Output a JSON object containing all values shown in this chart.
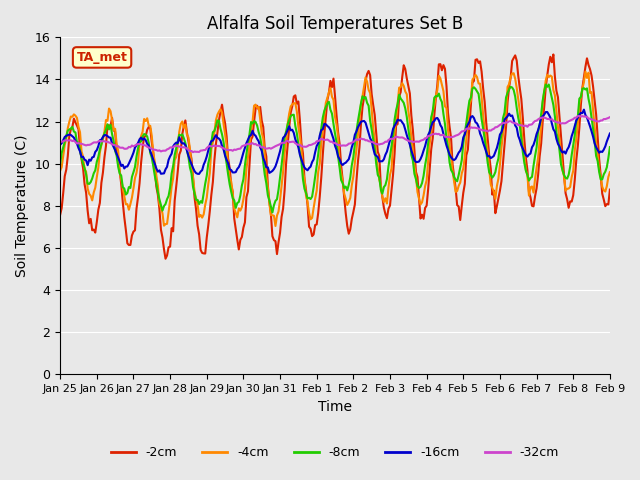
{
  "title": "Alfalfa Soil Temperatures Set B",
  "xlabel": "Time",
  "ylabel": "Soil Temperature (C)",
  "ylim": [
    0,
    16
  ],
  "yticks": [
    0,
    2,
    4,
    6,
    8,
    10,
    12,
    14,
    16
  ],
  "background_color": "#e8e8e8",
  "plot_bg_color": "#e8e8e8",
  "annotation_text": "TA_met",
  "annotation_color": "#cc2200",
  "annotation_bg": "#ffffcc",
  "legend_entries": [
    "-2cm",
    "-4cm",
    "-8cm",
    "-16cm",
    "-32cm"
  ],
  "line_colors": [
    "#dd2200",
    "#ff8800",
    "#22cc00",
    "#0000cc",
    "#cc44cc"
  ],
  "line_widths": [
    1.5,
    1.5,
    1.5,
    1.5,
    1.5
  ],
  "x_tick_labels": [
    "Jan 25",
    "Jan 26",
    "Jan 27",
    "Jan 28",
    "Jan 29",
    "Jan 30",
    "Jan 31",
    "Feb 1",
    "Feb 2",
    "Feb 3",
    "Feb 4",
    "Feb 5",
    "Feb 6",
    "Feb 7",
    "Feb 8",
    "Feb 9"
  ],
  "x_tick_positions": [
    0,
    1,
    2,
    3,
    4,
    5,
    6,
    7,
    8,
    9,
    10,
    11,
    12,
    13,
    14,
    15
  ],
  "xlim": [
    0,
    15
  ],
  "n_days": 16
}
